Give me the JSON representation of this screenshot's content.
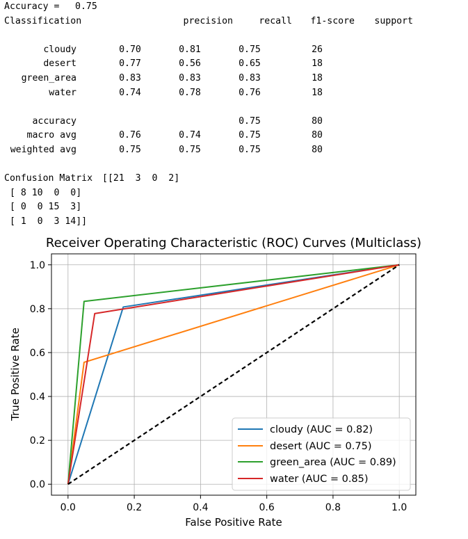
{
  "report": {
    "accuracy_label": "Accuracy =",
    "accuracy_value": "0.75",
    "classification_label": "Classification",
    "headers": [
      "precision",
      "recall",
      "f1-score",
      "support"
    ],
    "rows": [
      {
        "label": "cloudy",
        "values": [
          "0.70",
          "0.81",
          "0.75",
          "26"
        ]
      },
      {
        "label": "desert",
        "values": [
          "0.77",
          "0.56",
          "0.65",
          "18"
        ]
      },
      {
        "label": "green_area",
        "values": [
          "0.83",
          "0.83",
          "0.83",
          "18"
        ]
      },
      {
        "label": "water",
        "values": [
          "0.74",
          "0.78",
          "0.76",
          "18"
        ]
      }
    ],
    "summary": [
      {
        "label": "accuracy",
        "values": [
          "",
          "",
          "0.75",
          "80"
        ]
      },
      {
        "label": "macro avg",
        "values": [
          "0.76",
          "0.74",
          "0.75",
          "80"
        ]
      },
      {
        "label": "weighted avg",
        "values": [
          "0.75",
          "0.75",
          "0.75",
          "80"
        ]
      }
    ],
    "confusion_label": "Confusion Matrix",
    "confusion_lines": [
      "[[21  3  0  2]",
      " [ 8 10  0  0]",
      " [ 0  0 15  3]",
      " [ 1  0  3 14]]"
    ]
  },
  "chart_data": {
    "type": "line",
    "title": "Receiver Operating Characteristic (ROC) Curves (Multiclass)",
    "xlabel": "False Positive Rate",
    "ylabel": "True Positive Rate",
    "xlim": [
      -0.05,
      1.05
    ],
    "ylim": [
      -0.05,
      1.05
    ],
    "xticks": [
      0.0,
      0.2,
      0.4,
      0.6,
      0.8,
      1.0
    ],
    "yticks": [
      0.0,
      0.2,
      0.4,
      0.6,
      0.8,
      1.0
    ],
    "xtick_labels": [
      "0.0",
      "0.2",
      "0.4",
      "0.6",
      "0.8",
      "1.0"
    ],
    "ytick_labels": [
      "0.0",
      "0.2",
      "0.4",
      "0.6",
      "0.8",
      "1.0"
    ],
    "grid": true,
    "legend_position": "lower-right",
    "series": [
      {
        "name": "cloudy (AUC = 0.82)",
        "color": "#1f77b4",
        "x": [
          0.0,
          0.1667,
          1.0
        ],
        "y": [
          0.0,
          0.8077,
          1.0
        ]
      },
      {
        "name": "desert (AUC = 0.75)",
        "color": "#ff7f0e",
        "x": [
          0.0,
          0.0484,
          1.0
        ],
        "y": [
          0.0,
          0.5556,
          1.0
        ]
      },
      {
        "name": "green_area (AUC = 0.89)",
        "color": "#2ca02c",
        "x": [
          0.0,
          0.0484,
          1.0
        ],
        "y": [
          0.0,
          0.8333,
          1.0
        ]
      },
      {
        "name": "water (AUC = 0.85)",
        "color": "#d62728",
        "x": [
          0.0,
          0.0806,
          1.0
        ],
        "y": [
          0.0,
          0.7778,
          1.0
        ]
      }
    ],
    "reference_line": {
      "x": [
        0.0,
        1.0
      ],
      "y": [
        0.0,
        1.0
      ],
      "color": "#000000",
      "style": "dashed"
    }
  }
}
